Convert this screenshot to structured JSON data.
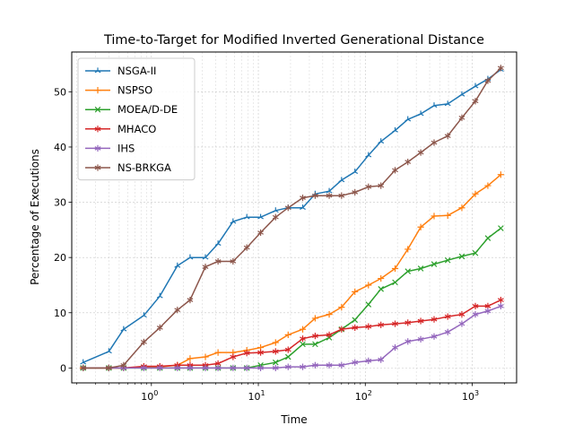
{
  "chart_data": {
    "type": "line",
    "title": "Time-to-Target for Modified Inverted Generational Distance",
    "xlabel": "Time",
    "ylabel": "Percentage of Executions",
    "x_scale": "log",
    "xlim": [
      0.18,
      2600
    ],
    "ylim": [
      -2.7,
      57.2
    ],
    "x_ticks": [
      {
        "value": 1,
        "base": "10",
        "exp": "0"
      },
      {
        "value": 10,
        "base": "10",
        "exp": "1"
      },
      {
        "value": 100,
        "base": "10",
        "exp": "2"
      },
      {
        "value": 1000,
        "base": "10",
        "exp": "3"
      }
    ],
    "y_ticks": [
      0,
      10,
      20,
      30,
      40,
      50
    ],
    "grid": true,
    "legend_position": "upper-left",
    "x": [
      0.23,
      0.4,
      0.55,
      0.85,
      1.2,
      1.75,
      2.3,
      3.2,
      4.2,
      5.8,
      7.8,
      10.5,
      14.5,
      19,
      26,
      34,
      46,
      60,
      80,
      107,
      140,
      190,
      250,
      330,
      440,
      590,
      800,
      1070,
      1400,
      1850
    ],
    "series": [
      {
        "name": "NSGA-II",
        "color": "#1f77b4",
        "marker": "tri",
        "values": [
          1.0,
          3.0,
          7.0,
          9.5,
          13.0,
          18.5,
          20.0,
          20.0,
          22.5,
          26.5,
          27.3,
          27.3,
          28.5,
          29.0,
          29.0,
          31.5,
          32.0,
          34.0,
          35.5,
          38.5,
          41.0,
          43.0,
          45.0,
          46.0,
          47.5,
          47.8,
          49.5,
          51.0,
          52.3,
          54.0
        ]
      },
      {
        "name": "NSPSO",
        "color": "#ff7f0e",
        "marker": "plus",
        "values": [
          0.0,
          0.0,
          0.0,
          0.2,
          0.2,
          0.5,
          1.7,
          2.0,
          2.8,
          2.8,
          3.2,
          3.7,
          4.6,
          6.0,
          7.0,
          9.0,
          9.7,
          11.0,
          13.8,
          15.0,
          16.2,
          18.0,
          21.5,
          25.5,
          27.5,
          27.6,
          29.0,
          31.5,
          33.0,
          35.0
        ]
      },
      {
        "name": "MOEA/D-DE",
        "color": "#2ca02c",
        "marker": "x",
        "values": [
          0.0,
          0.0,
          0.0,
          0.0,
          0.0,
          0.0,
          0.0,
          0.0,
          0.0,
          0.0,
          0.0,
          0.5,
          1.0,
          2.0,
          4.3,
          4.3,
          5.5,
          7.0,
          8.7,
          11.5,
          14.3,
          15.5,
          17.5,
          18.0,
          18.8,
          19.5,
          20.2,
          20.8,
          23.5,
          25.3
        ]
      },
      {
        "name": "MHACO",
        "color": "#d62728",
        "marker": "star",
        "values": [
          0.0,
          0.0,
          0.0,
          0.3,
          0.3,
          0.5,
          0.5,
          0.5,
          0.8,
          2.0,
          2.7,
          2.8,
          3.0,
          3.3,
          5.3,
          5.8,
          6.0,
          7.0,
          7.3,
          7.5,
          7.8,
          8.0,
          8.2,
          8.5,
          8.8,
          9.3,
          9.7,
          11.2,
          11.2,
          12.3
        ]
      },
      {
        "name": "IHS",
        "color": "#9467bd",
        "marker": "star",
        "values": [
          0.0,
          0.0,
          0.0,
          0.0,
          0.0,
          0.0,
          0.0,
          0.0,
          0.0,
          0.0,
          0.0,
          0.0,
          0.0,
          0.2,
          0.2,
          0.5,
          0.5,
          0.5,
          1.0,
          1.3,
          1.5,
          3.7,
          4.8,
          5.2,
          5.7,
          6.5,
          8.0,
          9.7,
          10.3,
          11.2
        ]
      },
      {
        "name": "NS-BRKGA",
        "color": "#8c564b",
        "marker": "star",
        "values": [
          0.0,
          0.0,
          0.5,
          4.7,
          7.3,
          10.5,
          12.3,
          18.3,
          19.3,
          19.3,
          21.8,
          24.5,
          27.3,
          29.0,
          30.8,
          31.2,
          31.2,
          31.2,
          31.8,
          32.8,
          33.0,
          35.8,
          37.3,
          39.0,
          40.8,
          42.0,
          45.3,
          48.3,
          52.0,
          54.3
        ]
      }
    ]
  }
}
